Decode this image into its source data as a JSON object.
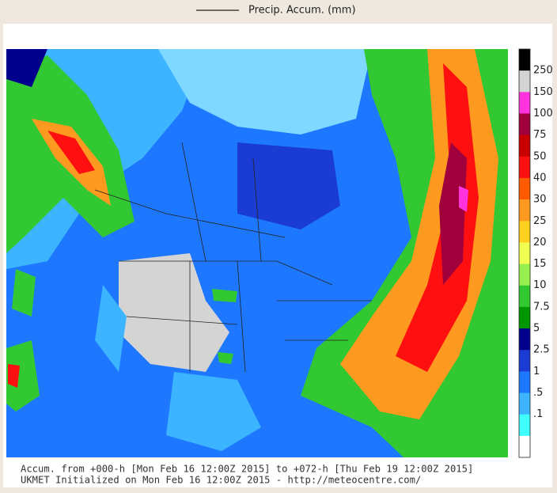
{
  "header": {
    "title": "Precip. Accum. (mm)"
  },
  "colorbar": {
    "colors": [
      "#000000",
      "#d4d4d4",
      "#ff33dd",
      "#a0003c",
      "#c80000",
      "#ff1010",
      "#ff5a00",
      "#ff9a20",
      "#ffd020",
      "#f0ff50",
      "#96f050",
      "#32c832",
      "#009600",
      "#00008c",
      "#1a3cd2",
      "#1e78ff",
      "#3cb4ff",
      "#40ffff",
      "#ffffff"
    ],
    "labels": [
      "250",
      "150",
      "100",
      "75",
      "50",
      "40",
      "30",
      "25",
      "20",
      "15",
      "10",
      "7.5",
      "5",
      "2.5",
      "1",
      ".5",
      ".1"
    ]
  },
  "footer": {
    "line1": "Accum. from +000-h [Mon Feb 16 12:00Z 2015] to +072-h [Thu Feb 19 12:00Z 2015]",
    "line2": "UKMET Initialized on Mon Feb 16 12:00Z 2015 - http://meteocentre.com/"
  }
}
